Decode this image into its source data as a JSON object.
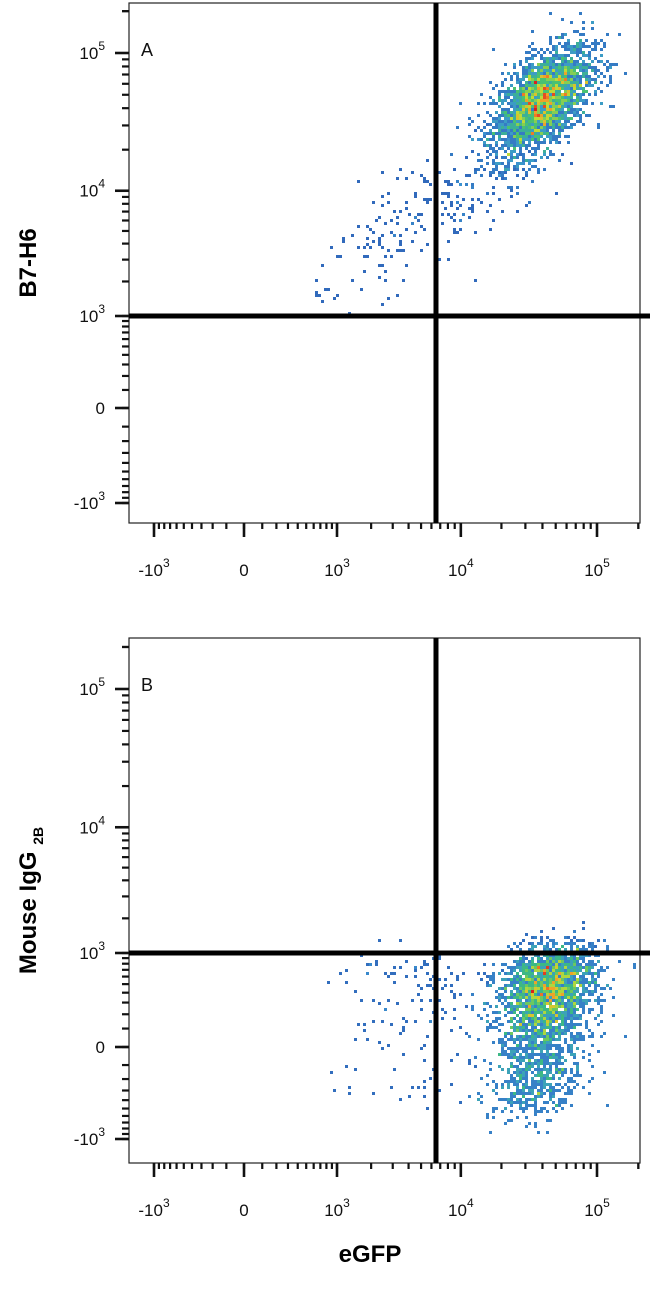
{
  "chart_data": [
    {
      "type": "scatter",
      "panel_label": "A",
      "xlabel": "eGFP",
      "ylabel": "B7-H6",
      "ylabel_sub": "",
      "x_ticks": [
        {
          "v": -1000,
          "base": "-10",
          "exp": "3"
        },
        {
          "v": 0,
          "base": "0",
          "exp": ""
        },
        {
          "v": 1000,
          "base": "10",
          "exp": "3"
        },
        {
          "v": 10000,
          "base": "10",
          "exp": "4"
        },
        {
          "v": 100000,
          "base": "10",
          "exp": "5"
        }
      ],
      "y_ticks": [
        {
          "v": -1000,
          "base": "-10",
          "exp": "3"
        },
        {
          "v": 0,
          "base": "0",
          "exp": ""
        },
        {
          "v": 1000,
          "base": "10",
          "exp": "3"
        },
        {
          "v": 10000,
          "base": "10",
          "exp": "4"
        },
        {
          "v": 100000,
          "base": "10",
          "exp": "5"
        }
      ],
      "gate": {
        "x": 6500,
        "y": 1000
      },
      "populations": [
        {
          "cx": 40000,
          "cy": 45000,
          "sx_decades": 0.18,
          "sy_decades": 0.2,
          "corr": 0.55,
          "n": 2600,
          "kind": "density"
        },
        {
          "cx": 8000,
          "cy": 8000,
          "sx_decades": 0.35,
          "sy_decades": 0.28,
          "corr": 0.6,
          "n": 180,
          "kind": "sparse"
        },
        {
          "cx": 2000,
          "cy": 3500,
          "sx_decades": 0.25,
          "sy_decades": 0.2,
          "corr": 0.5,
          "n": 40,
          "kind": "sparse"
        }
      ]
    },
    {
      "type": "scatter",
      "panel_label": "B",
      "xlabel": "eGFP",
      "ylabel": "Mouse IgG",
      "ylabel_sub": "2B",
      "x_ticks": [
        {
          "v": -1000,
          "base": "-10",
          "exp": "3"
        },
        {
          "v": 0,
          "base": "0",
          "exp": ""
        },
        {
          "v": 1000,
          "base": "10",
          "exp": "3"
        },
        {
          "v": 10000,
          "base": "10",
          "exp": "4"
        },
        {
          "v": 100000,
          "base": "10",
          "exp": "5"
        }
      ],
      "y_ticks": [
        {
          "v": -1000,
          "base": "-10",
          "exp": "3"
        },
        {
          "v": 0,
          "base": "0",
          "exp": ""
        },
        {
          "v": 1000,
          "base": "10",
          "exp": "3"
        },
        {
          "v": 10000,
          "base": "10",
          "exp": "4"
        },
        {
          "v": 100000,
          "base": "10",
          "exp": "5"
        }
      ],
      "gate": {
        "x": 6500,
        "y": 1000
      },
      "populations": [
        {
          "cx": 42000,
          "cy": 300,
          "sx_decades": 0.18,
          "sy_decades": 0.22,
          "corr": 0.3,
          "n": 2600,
          "kind": "density"
        },
        {
          "cx": 4000,
          "cy": 350,
          "sx_decades": 0.35,
          "sy_decades": 0.2,
          "corr": 0.1,
          "n": 150,
          "kind": "sparse"
        },
        {
          "cx": 50000,
          "cy": 1200,
          "sx_decades": 0.15,
          "sy_decades": 0.1,
          "corr": 0.0,
          "n": 30,
          "kind": "sparse"
        }
      ]
    }
  ]
}
